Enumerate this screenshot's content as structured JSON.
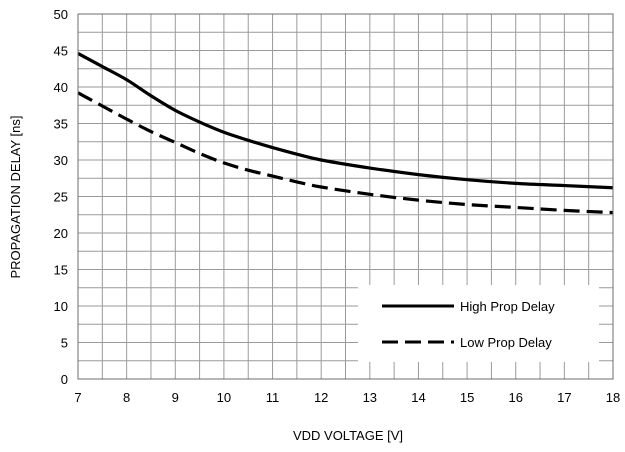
{
  "chart_data": {
    "type": "line",
    "title": "",
    "xlabel": "VDD VOLTAGE [V]",
    "ylabel": "PROPAGATION DELAY [ns]",
    "xlim": [
      7,
      18
    ],
    "ylim": [
      0,
      50
    ],
    "x_ticks": [
      "7",
      "8",
      "9",
      "10",
      "11",
      "12",
      "13",
      "14",
      "15",
      "16",
      "17",
      "18"
    ],
    "y_ticks": [
      "0",
      "5",
      "10",
      "15",
      "20",
      "25",
      "30",
      "35",
      "40",
      "45",
      "50"
    ],
    "grid": true,
    "legend_placement": "bottom-right",
    "series": [
      {
        "name": "High Prop Delay",
        "style": "solid",
        "color": "#000000",
        "x": [
          7,
          7.5,
          8,
          8.5,
          9,
          9.5,
          10,
          10.5,
          11,
          11.5,
          12,
          13,
          14,
          15,
          16,
          17,
          18
        ],
        "values": [
          44.6,
          42.8,
          41.0,
          38.8,
          36.8,
          35.2,
          33.8,
          32.7,
          31.7,
          30.8,
          30.0,
          28.9,
          28.0,
          27.3,
          26.8,
          26.5,
          26.2
        ]
      },
      {
        "name": "Low Prop Delay",
        "style": "dashed",
        "color": "#000000",
        "x": [
          7,
          7.5,
          8,
          8.5,
          9,
          9.5,
          10,
          10.5,
          11,
          11.5,
          12,
          13,
          14,
          15,
          16,
          17,
          18
        ],
        "values": [
          39.2,
          37.4,
          35.6,
          33.9,
          32.4,
          30.9,
          29.6,
          28.6,
          27.8,
          27.0,
          26.3,
          25.3,
          24.5,
          23.9,
          23.5,
          23.1,
          22.8
        ]
      }
    ]
  }
}
